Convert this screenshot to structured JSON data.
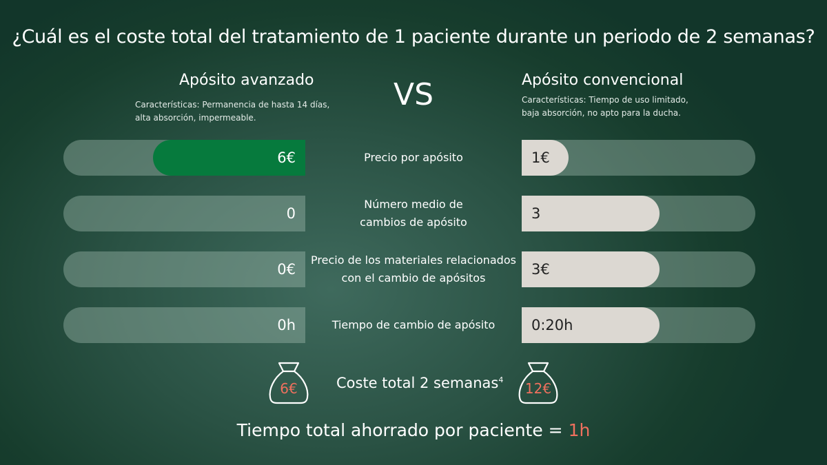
{
  "title": "¿Cuál es el coste total del tratamiento de 1 paciente durante un periodo de 2 semanas?",
  "vs": "VS",
  "left": {
    "heading": "Apósito avanzado",
    "desc1": "Características: Permanencia de hasta 14 días,",
    "desc2": "alta absorción, impermeable."
  },
  "right": {
    "heading": "Apósito convencional",
    "desc1": "Características: Tiempo de uso limitado,",
    "desc2": "baja absorción, no apto para la ducha."
  },
  "rows": [
    {
      "l1": "Precio por apósito",
      "l2": "",
      "left": "6€",
      "right": "1€",
      "left_fill": 0.63,
      "right_fill": 0.2
    },
    {
      "l1": "Número medio de",
      "l2": "cambios de apósito",
      "left": "0",
      "right": "3",
      "left_fill": 0,
      "right_fill": 0.59
    },
    {
      "l1": "Precio de los materiales relacionados",
      "l2": "con el cambio de apósitos",
      "left": "0€",
      "right": "3€",
      "left_fill": 0,
      "right_fill": 0.59
    },
    {
      "l1": "Tiempo de cambio de apósito",
      "l2": "",
      "left": "0h",
      "right": "0:20h",
      "left_fill": 0,
      "right_fill": 0.59
    }
  ],
  "total": {
    "label": "Coste total 2 semanas",
    "sup": "4",
    "left": "6€",
    "right": "12€",
    "icon": "money-bag-icon"
  },
  "saved": {
    "label": "Tiempo total ahorrado por paciente = ",
    "value": "1h"
  },
  "colors": {
    "accent_green": "#067a3d",
    "highlight": "#f0705e",
    "fill_light": "#dcd8d2"
  }
}
